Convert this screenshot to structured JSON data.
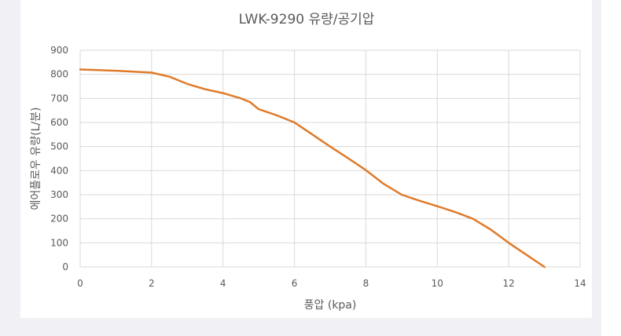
{
  "chart_data": {
    "type": "line",
    "title": "LWK-9290 유량/공기압",
    "xlabel": "풍압 (kpa)",
    "ylabel": "에어플로우 유량(L/분)",
    "xlim": [
      0,
      14
    ],
    "ylim": [
      0,
      900
    ],
    "x_ticks": [
      0,
      2,
      4,
      6,
      8,
      10,
      12,
      14
    ],
    "y_ticks": [
      0,
      100,
      200,
      300,
      400,
      500,
      600,
      700,
      800,
      900
    ],
    "grid": true,
    "legend": "none",
    "series": [
      {
        "color": "#e07b2a",
        "points": [
          [
            0,
            820
          ],
          [
            1,
            815
          ],
          [
            2,
            807
          ],
          [
            2.5,
            790
          ],
          [
            3,
            760
          ],
          [
            3.5,
            738
          ],
          [
            4,
            722
          ],
          [
            4.5,
            700
          ],
          [
            4.75,
            685
          ],
          [
            5,
            655
          ],
          [
            5.5,
            630
          ],
          [
            6,
            600
          ],
          [
            6.5,
            550
          ],
          [
            7,
            500
          ],
          [
            7.5,
            452
          ],
          [
            8,
            402
          ],
          [
            8.5,
            345
          ],
          [
            9,
            300
          ],
          [
            9.5,
            275
          ],
          [
            10,
            252
          ],
          [
            10.5,
            228
          ],
          [
            11,
            200
          ],
          [
            11.5,
            155
          ],
          [
            12,
            100
          ],
          [
            12.5,
            50
          ],
          [
            13,
            0
          ]
        ]
      }
    ]
  }
}
